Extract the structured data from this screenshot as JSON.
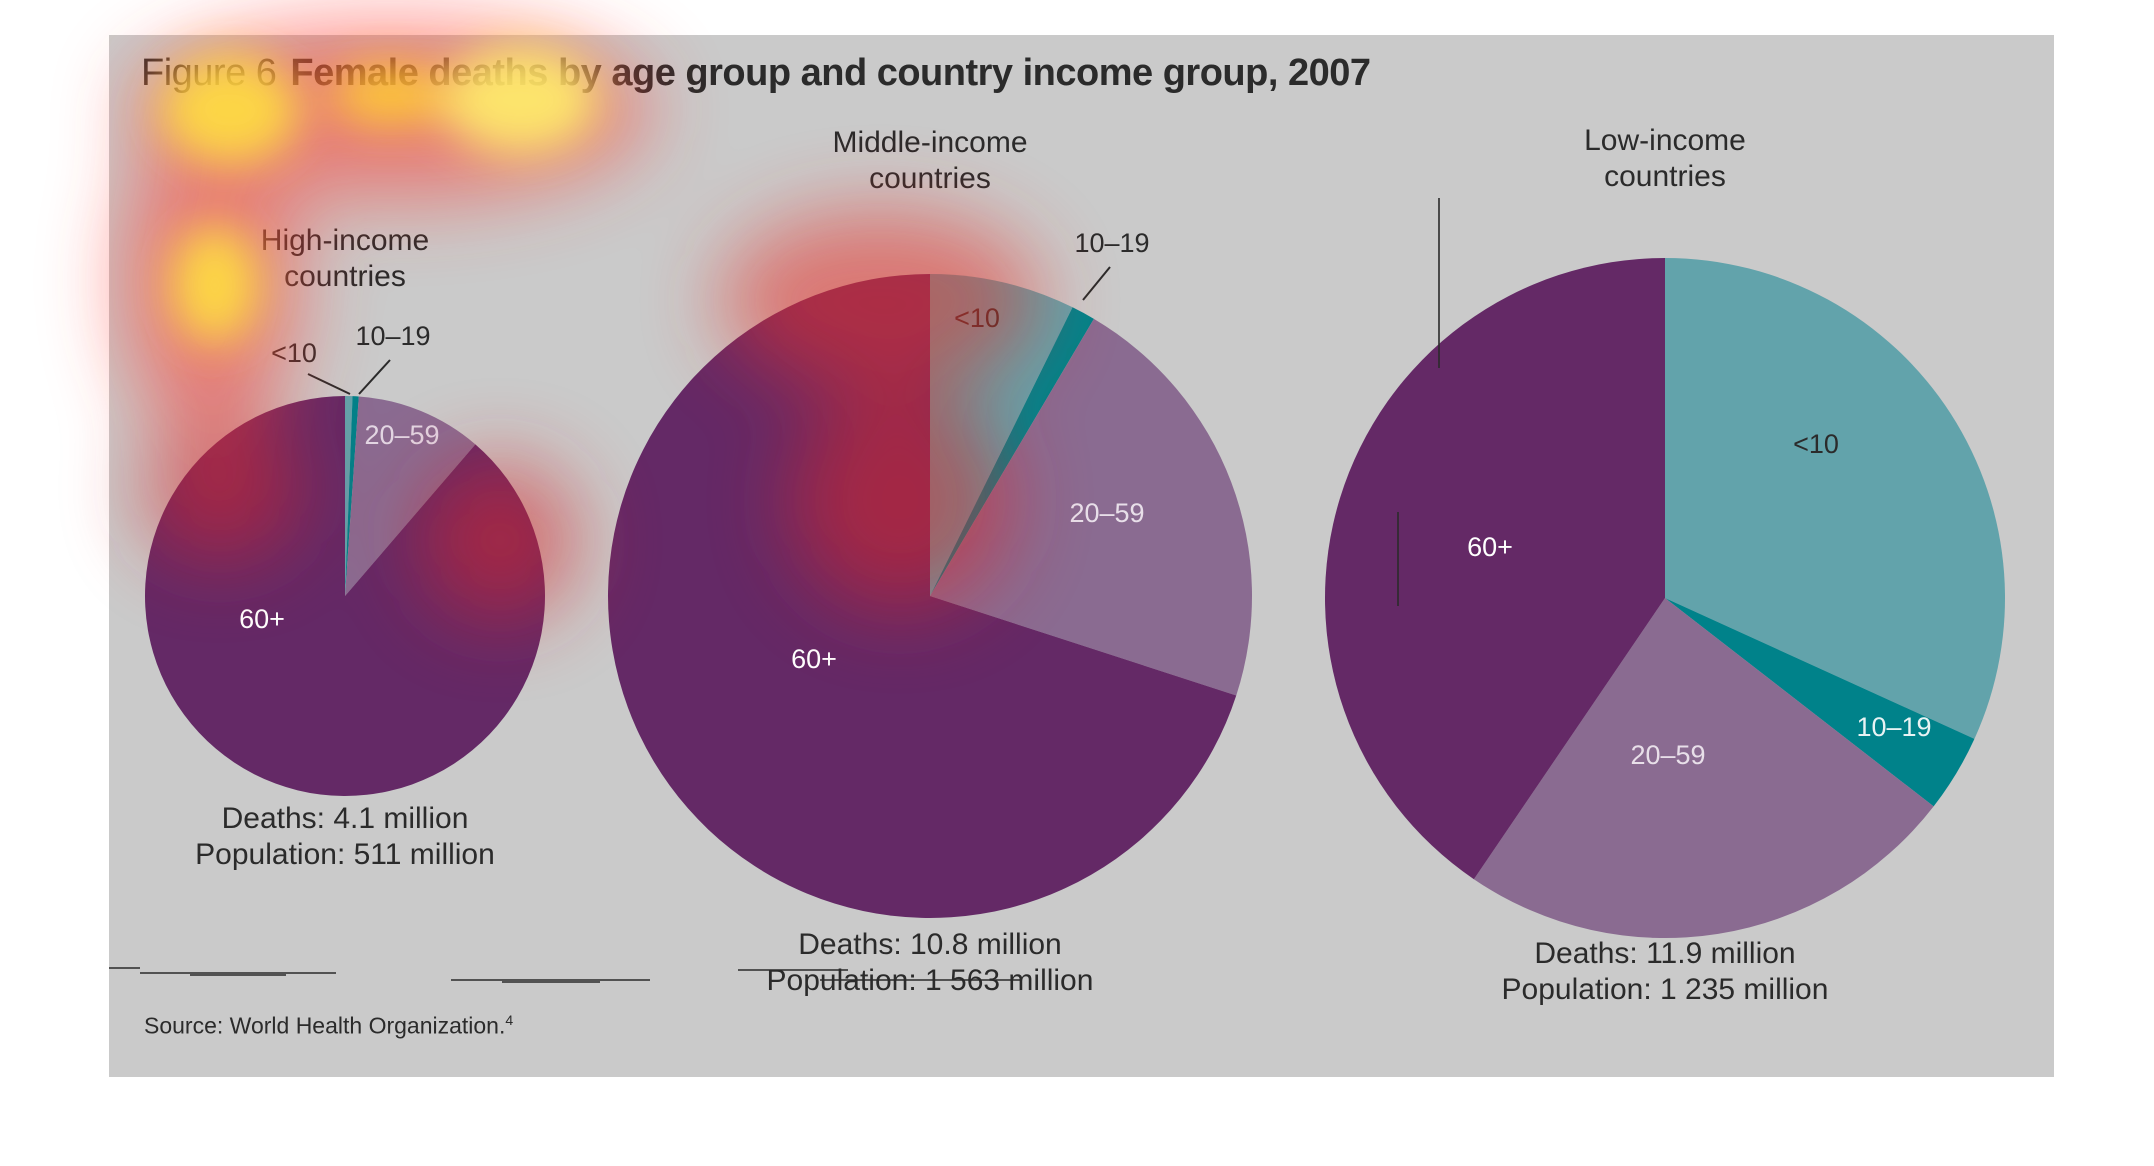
{
  "figure": {
    "number": "Figure 6",
    "title": "Female deaths by age group and country income group, 2007",
    "source": "Source: World Health Organization.",
    "source_ref": "4"
  },
  "colors": {
    "panel": "#cacaca",
    "lt10": "#62a3ab",
    "a10_19": "#00828a",
    "a20_59": "#8a6b91",
    "a60plus": "#642966"
  },
  "chart_data": [
    {
      "type": "pie",
      "group": "High-income countries",
      "label_lines": [
        "High-income",
        "countries"
      ],
      "deaths": "Deaths: 4.1 million",
      "population": "Population: 511 million",
      "slices": [
        {
          "label": "<10",
          "value": 0.6,
          "color": "#62a3ab"
        },
        {
          "label": "10–19",
          "value": 0.5,
          "color": "#00828a"
        },
        {
          "label": "20–59",
          "value": 10.2,
          "color": "#8a6b91"
        },
        {
          "label": "60+",
          "value": 88.7,
          "color": "#642966"
        }
      ]
    },
    {
      "type": "pie",
      "group": "Middle-income countries",
      "label_lines": [
        "Middle-income",
        "countries"
      ],
      "deaths": "Deaths: 10.8 million",
      "population": "Population: 1 563 million",
      "slices": [
        {
          "label": "<10",
          "value": 7.3,
          "color": "#62a3ab"
        },
        {
          "label": "10–19",
          "value": 1.2,
          "color": "#00828a"
        },
        {
          "label": "20–59",
          "value": 21.5,
          "color": "#8a6b91"
        },
        {
          "label": "60+",
          "value": 70.0,
          "color": "#642966"
        }
      ]
    },
    {
      "type": "pie",
      "group": "Low-income countries",
      "label_lines": [
        "Low-income",
        "countries"
      ],
      "deaths": "Deaths: 11.9 million",
      "population": "Population: 1 235 million",
      "slices": [
        {
          "label": "<10",
          "value": 31.8,
          "color": "#62a3ab"
        },
        {
          "label": "10–19",
          "value": 3.7,
          "color": "#00828a"
        },
        {
          "label": "20–59",
          "value": 24.0,
          "color": "#8a6b91"
        },
        {
          "label": "60+",
          "value": 40.5,
          "color": "#642966"
        }
      ]
    }
  ]
}
